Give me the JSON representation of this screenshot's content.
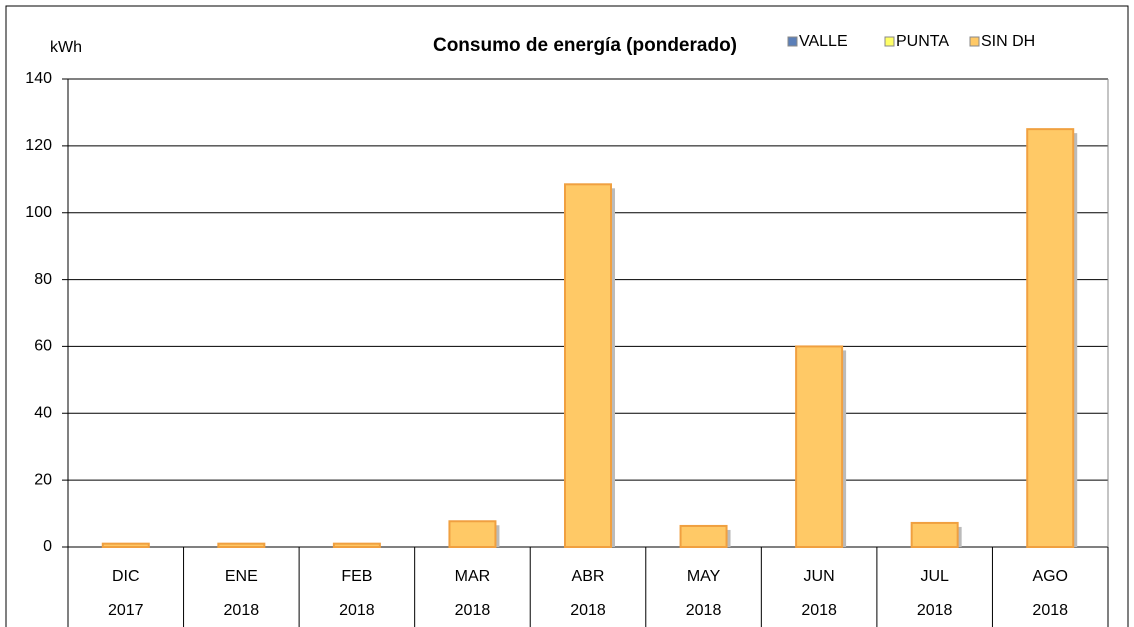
{
  "chart_data": {
    "type": "bar",
    "stacked": true,
    "title": "Consumo de energía (ponderado)",
    "y_label": "kWh",
    "categories": [
      "DIC",
      "ENE",
      "FEB",
      "MAR",
      "ABR",
      "MAY",
      "JUN",
      "JUL",
      "AGO"
    ],
    "category_groups": [
      "2017",
      "2018",
      "2018",
      "2018",
      "2018",
      "2018",
      "2018",
      "2018",
      "2018"
    ],
    "series": [
      {
        "name": "VALLE",
        "color": "#5b7fb8",
        "values": [
          0,
          0,
          0,
          0,
          0,
          0,
          0,
          0,
          0
        ]
      },
      {
        "name": "PUNTA",
        "color": "#ffff66",
        "values": [
          0,
          0,
          0,
          0,
          0,
          0,
          0,
          0,
          0
        ]
      },
      {
        "name": "SIN DH",
        "color": "#ffc966",
        "values": [
          1,
          1,
          1,
          7.7,
          108.5,
          6.3,
          60,
          7.2,
          125
        ]
      }
    ],
    "ylim": [
      0,
      140
    ],
    "yticks": [
      0,
      20,
      40,
      60,
      80,
      100,
      120,
      140
    ],
    "grid": true,
    "legend": "top-right"
  }
}
